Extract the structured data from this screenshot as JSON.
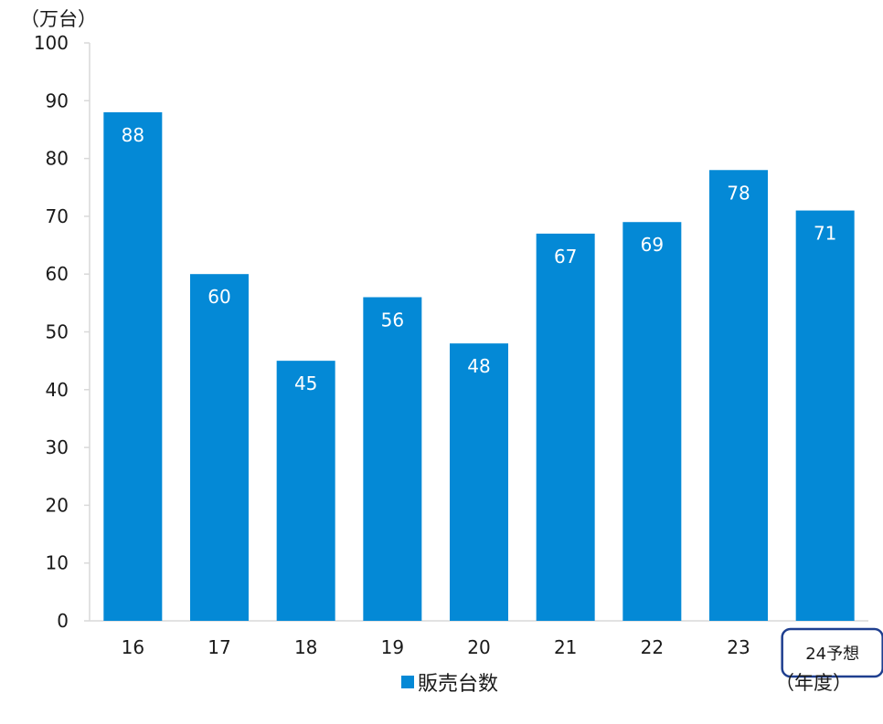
{
  "chart_data": {
    "type": "bar",
    "y_unit_label": "（万台）",
    "x_unit_label": "（年度）",
    "categories": [
      "16",
      "17",
      "18",
      "19",
      "20",
      "21",
      "22",
      "23",
      "24予想"
    ],
    "highlighted_category": "24予想",
    "series": [
      {
        "name": "販売台数",
        "values": [
          88,
          60,
          45,
          56,
          48,
          67,
          69,
          78,
          71
        ]
      }
    ],
    "ylim": [
      0,
      100
    ],
    "yticks": [
      0,
      10,
      20,
      30,
      40,
      50,
      60,
      70,
      80,
      90,
      100
    ],
    "grid": false,
    "data_labels": true,
    "legend_position": "bottom-center",
    "colors": {
      "bar": "#0489D6",
      "highlight_border": "#1F3F8F",
      "axis": "#D9D9D9",
      "text": "#1A1A1A",
      "label_text": "#FFFFFF"
    }
  }
}
